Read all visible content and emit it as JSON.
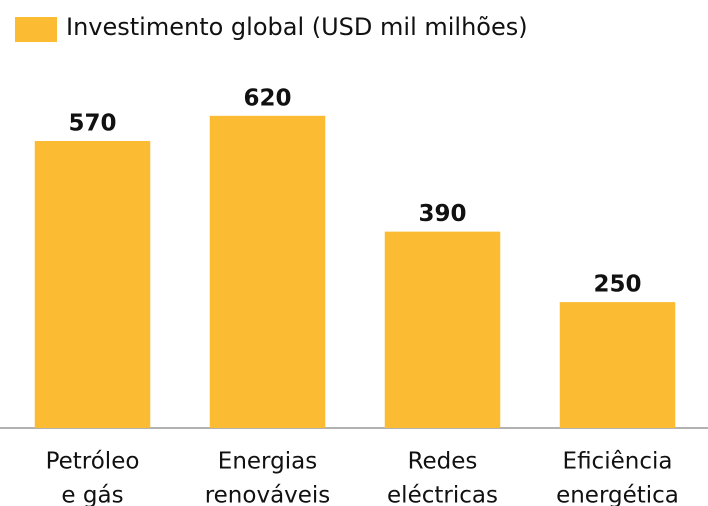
{
  "chart_data": {
    "type": "bar",
    "categories": [
      [
        "Petróleo",
        "e gás"
      ],
      [
        "Energias",
        "renováveis"
      ],
      [
        "Redes",
        "eléctricas"
      ],
      [
        "Eficiência",
        "energética"
      ]
    ],
    "series": [
      {
        "name": "Investimento global (USD mil milhões)",
        "color": "#fbbc33",
        "values": [
          570,
          620,
          390,
          250
        ]
      }
    ],
    "ylim": [
      0,
      850
    ],
    "grid": false
  }
}
